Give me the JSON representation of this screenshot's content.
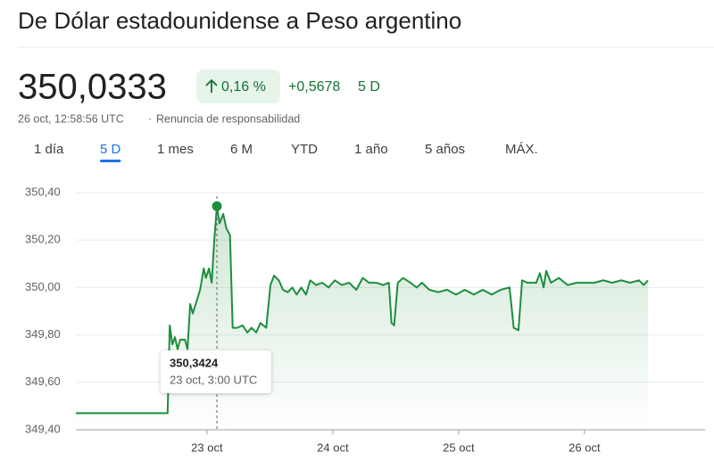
{
  "header": {
    "title": "De Dólar estadounidense a Peso argentino",
    "price": "350,0333",
    "change_percent": "0,16 %",
    "change": "+0,5678",
    "period": "5 D",
    "timestamp": "26 oct, 12:58:56 UTC",
    "separator": "·",
    "disclaimer": "Renuncia de responsabilidad"
  },
  "tabs": {
    "items": [
      "1 día",
      "5 D",
      "1 mes",
      "6 M",
      "YTD",
      "1 año",
      "5 años",
      "MÁX."
    ],
    "active": 1
  },
  "chart_data": {
    "type": "line",
    "x": [
      -25,
      -7.5,
      -7.1,
      -6.6,
      -6.1,
      -5.6,
      -5.1,
      -4.2,
      -3.7,
      -3.2,
      -2.7,
      -2.0,
      -1.3,
      -0.6,
      -0.2,
      0.4,
      0.9,
      1.4,
      1.9,
      2.4,
      3.1,
      3.7,
      4.4,
      4.9,
      5.8,
      6.8,
      7.7,
      8.5,
      9.4,
      10.2,
      11.3,
      12.1,
      12.8,
      13.7,
      14.5,
      15.4,
      16.3,
      17.1,
      18.0,
      18.9,
      19.7,
      20.8,
      22.0,
      23.2,
      24.4,
      25.7,
      27.1,
      28.5,
      29.7,
      30.9,
      32.3,
      33.6,
      34.7,
      35.2,
      35.7,
      36.4,
      37.4,
      38.8,
      40.0,
      41.0,
      42.4,
      44.1,
      45.8,
      47.5,
      49.2,
      50.9,
      52.6,
      54.3,
      56.0,
      57.7,
      58.5,
      59.4,
      60.1,
      61.1,
      62.8,
      63.5,
      64.2,
      64.7,
      65.6,
      67.1,
      68.8,
      70.5,
      72.2,
      73.9,
      75.6,
      77.3,
      79.0,
      80.7,
      82.4,
      83.3,
      84.1
    ],
    "series": [
      {
        "color": "#1e8e3e",
        "values": [
          349.47,
          349.47,
          349.84,
          349.76,
          349.79,
          349.74,
          349.78,
          349.78,
          349.74,
          349.93,
          349.89,
          349.94,
          349.99,
          350.08,
          350.04,
          350.08,
          350.02,
          350.2,
          350.3424,
          350.27,
          350.31,
          350.25,
          350.22,
          349.83,
          349.83,
          349.84,
          349.81,
          349.83,
          349.81,
          349.85,
          349.83,
          350.01,
          350.05,
          350.03,
          349.99,
          349.98,
          350.0,
          349.97,
          350.0,
          349.97,
          350.03,
          350.01,
          350.02,
          350.0,
          350.03,
          350.01,
          350.02,
          349.99,
          350.04,
          350.02,
          350.02,
          350.01,
          350.02,
          349.85,
          349.84,
          350.02,
          350.04,
          350.02,
          350.0,
          350.02,
          349.99,
          349.98,
          349.99,
          349.97,
          349.99,
          349.97,
          349.99,
          349.97,
          349.99,
          350.0,
          349.83,
          349.82,
          350.03,
          350.02,
          350.02,
          350.06,
          350.0,
          350.07,
          350.02,
          350.04,
          350.01,
          350.02,
          350.02,
          350.02,
          350.03,
          350.02,
          350.03,
          350.02,
          350.03,
          350.01,
          350.03
        ]
      }
    ],
    "xlim": [
      -25,
      95
    ],
    "xticks": [
      {
        "value": 0,
        "label": "23 oct"
      },
      {
        "value": 24,
        "label": "24 oct"
      },
      {
        "value": 48,
        "label": "25 oct"
      },
      {
        "value": 72,
        "label": "26 oct"
      }
    ],
    "ylim": [
      349.4,
      350.46
    ],
    "yticks": [
      {
        "value": 349.4,
        "label": "349,40"
      },
      {
        "value": 349.6,
        "label": "349,60"
      },
      {
        "value": 349.8,
        "label": "349,80"
      },
      {
        "value": 350.0,
        "label": "350,00"
      },
      {
        "value": 350.2,
        "label": "350,20"
      },
      {
        "value": 350.4,
        "label": "350,40"
      }
    ],
    "grid": true,
    "annotation": {
      "x": 1.9,
      "value": 350.3424,
      "label": "350,3424",
      "time": "23 oct, 3:00 UTC"
    }
  }
}
